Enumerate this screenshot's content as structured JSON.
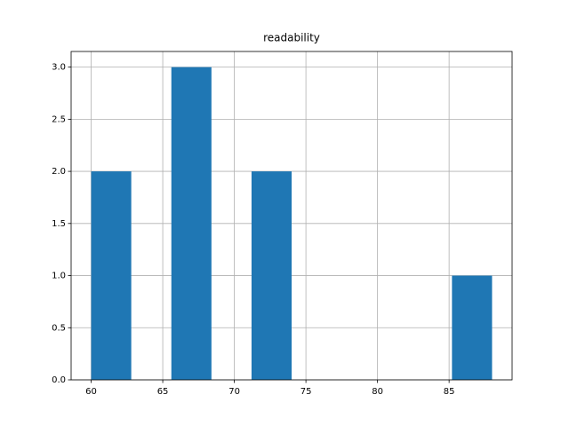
{
  "chart_data": {
    "type": "histogram",
    "title": "readability",
    "bins": [
      60,
      62.8,
      65.6,
      68.4,
      71.2,
      74,
      76.8,
      79.6,
      82.4,
      85.2,
      88
    ],
    "values": [
      2,
      0,
      3,
      0,
      2,
      0,
      0,
      0,
      0,
      1
    ],
    "color": "#1f77b4",
    "xlim": [
      58.6,
      89.4
    ],
    "xticks": [
      60,
      65,
      70,
      75,
      80,
      85
    ],
    "ylim": [
      0,
      3.15
    ],
    "yticks": [
      {
        "value": 0,
        "label": "0.0"
      },
      {
        "value": 0.5,
        "label": "0.5"
      },
      {
        "value": 1,
        "label": "1.0"
      },
      {
        "value": 1.5,
        "label": "1.5"
      },
      {
        "value": 2,
        "label": "2.0"
      },
      {
        "value": 2.5,
        "label": "2.5"
      },
      {
        "value": 3,
        "label": "3.0"
      }
    ],
    "grid": true
  }
}
